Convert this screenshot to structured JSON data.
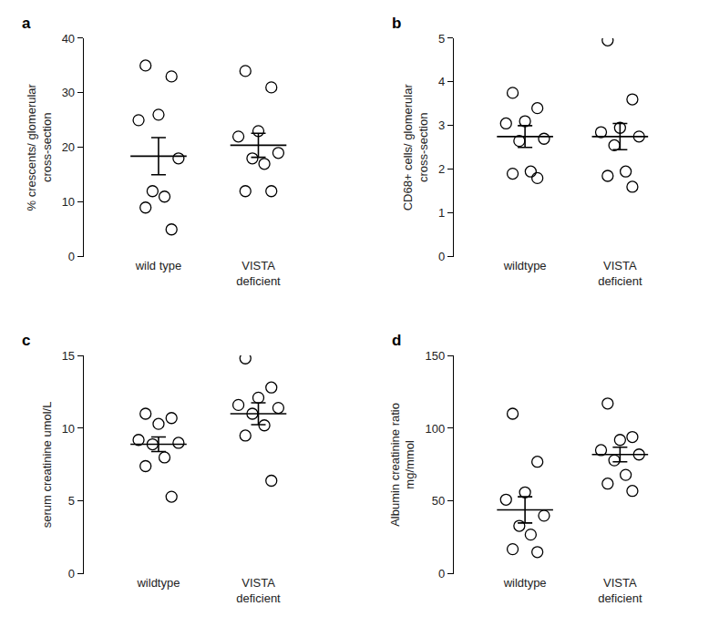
{
  "chart_data": [
    {
      "type": "scatter",
      "title": "a",
      "y_label": "% crescents/ glomerular\ncross-section",
      "categories": [
        "wild type",
        "VISTA\ndeficient"
      ],
      "values": [
        [
          35,
          33,
          26,
          25,
          18,
          12,
          11,
          9,
          5
        ],
        [
          34,
          31,
          23,
          22,
          19,
          18,
          17,
          12,
          12
        ]
      ],
      "mean": [
        18.4,
        20.4
      ],
      "sem": [
        3.4,
        2.2
      ],
      "ylim": [
        0,
        40
      ],
      "yticks": [
        0,
        10,
        20,
        30,
        40
      ],
      "grid": false,
      "color": "#000000",
      "marker": "circle-open"
    },
    {
      "type": "scatter",
      "title": "b",
      "y_label": "CD68+ cells/ glomerular\ncross-section",
      "categories": [
        "wildtype",
        "VISTA\ndeficient"
      ],
      "values": [
        [
          3.75,
          3.4,
          3.1,
          3.05,
          2.7,
          2.65,
          1.95,
          1.9,
          1.8
        ],
        [
          4.95,
          3.6,
          2.95,
          2.85,
          2.75,
          2.55,
          1.95,
          1.85,
          1.6
        ]
      ],
      "mean": [
        2.75,
        2.75
      ],
      "sem": [
        0.25,
        0.3
      ],
      "ylim": [
        0,
        5
      ],
      "yticks": [
        0,
        1,
        2,
        3,
        4,
        5
      ],
      "grid": false,
      "color": "#000000",
      "marker": "circle-open"
    },
    {
      "type": "scatter",
      "title": "c",
      "y_label": "serum creatinine umol/L",
      "categories": [
        "wildtype",
        "VISTA\ndeficient"
      ],
      "values": [
        [
          11,
          10.7,
          10.3,
          9.2,
          9.0,
          8.9,
          8.0,
          7.4,
          5.3
        ],
        [
          14.8,
          12.8,
          12.1,
          11.6,
          11.4,
          11.0,
          10.2,
          9.5,
          6.4
        ]
      ],
      "mean": [
        8.9,
        11.0
      ],
      "sem": [
        0.5,
        0.75
      ],
      "ylim": [
        0,
        15
      ],
      "yticks": [
        0,
        5,
        10,
        15
      ],
      "grid": false,
      "color": "#000000",
      "marker": "circle-open"
    },
    {
      "type": "scatter",
      "title": "d",
      "y_label": "Albumin creatinine ratio\nmg/mmol",
      "categories": [
        "wildtype",
        "VISTA\ndeficient"
      ],
      "values": [
        [
          110,
          77,
          56,
          51,
          40,
          33,
          27,
          17,
          15
        ],
        [
          117,
          94,
          92,
          85,
          82,
          78,
          68,
          62,
          57
        ]
      ],
      "mean": [
        44,
        82
      ],
      "sem": [
        9,
        5
      ],
      "ylim": [
        0,
        150
      ],
      "yticks": [
        0,
        50,
        100,
        150
      ],
      "grid": false,
      "color": "#000000",
      "marker": "circle-open"
    }
  ]
}
